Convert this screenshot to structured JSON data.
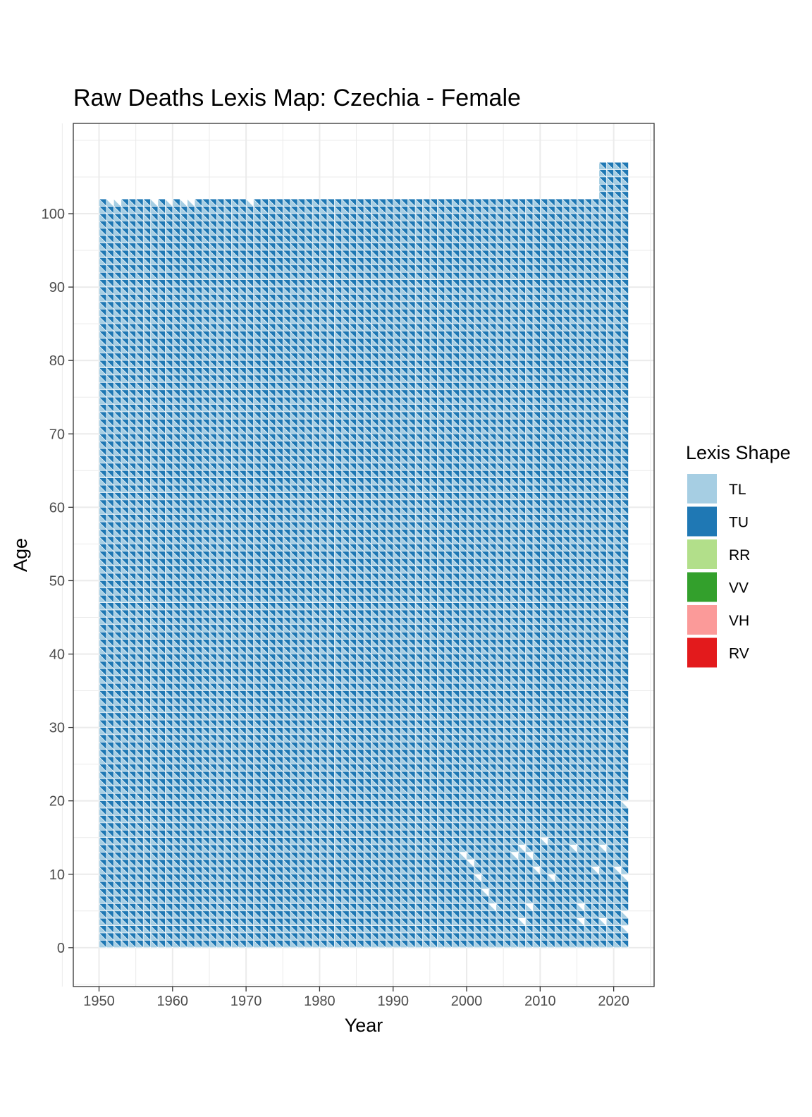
{
  "chart_data": {
    "type": "heatmap",
    "title": "Raw Deaths Lexis Map: Czechia - Female",
    "xlabel": "Year",
    "ylabel": "Age",
    "x_ticks": [
      "1950",
      "1960",
      "1970",
      "1980",
      "1990",
      "2000",
      "2010",
      "2020"
    ],
    "y_ticks": [
      "0",
      "10",
      "20",
      "30",
      "40",
      "50",
      "60",
      "70",
      "80",
      "90",
      "100"
    ],
    "xlim": [
      1946.5,
      2025.5
    ],
    "ylim": [
      -5.3,
      112.3
    ],
    "grid": true,
    "legend_position": "right",
    "year_range": [
      1950,
      2022
    ],
    "age_range": [
      0,
      102
    ],
    "extended_age_range": {
      "years": [
        2018,
        2022
      ],
      "max_age": 107
    },
    "legend": {
      "title": "Lexis Shape",
      "entries": [
        {
          "label": "TL",
          "color": "#a6cee3"
        },
        {
          "label": "TU",
          "color": "#1f78b4"
        },
        {
          "label": "RR",
          "color": "#b2df8a"
        },
        {
          "label": "VV",
          "color": "#33a02c"
        },
        {
          "label": "VH",
          "color": "#fb9a99"
        },
        {
          "label": "RV",
          "color": "#e31a1c"
        }
      ]
    },
    "cell_shapes": "Each year-age cell is split into a lower triangle (TL) and an upper triangle (TU)",
    "missing_triangles": [
      {
        "year": 1951,
        "age": 101
      },
      {
        "year": 1952,
        "age": 101
      },
      {
        "year": 1957,
        "age": 101
      },
      {
        "year": 1959,
        "age": 101
      },
      {
        "year": 1961,
        "age": 101
      },
      {
        "year": 1962,
        "age": 101
      },
      {
        "year": 1970,
        "age": 101
      },
      {
        "year": 1999,
        "age": 12
      },
      {
        "year": 2000,
        "age": 11
      },
      {
        "year": 2001,
        "age": 9
      },
      {
        "year": 2002,
        "age": 7
      },
      {
        "year": 2003,
        "age": 5
      },
      {
        "year": 2006,
        "age": 12
      },
      {
        "year": 2007,
        "age": 13
      },
      {
        "year": 2008,
        "age": 12
      },
      {
        "year": 2009,
        "age": 10
      },
      {
        "year": 2010,
        "age": 14
      },
      {
        "year": 2011,
        "age": 9
      },
      {
        "year": 2008,
        "age": 5
      },
      {
        "year": 2007,
        "age": 3
      },
      {
        "year": 2014,
        "age": 13
      },
      {
        "year": 2015,
        "age": 5
      },
      {
        "year": 2015,
        "age": 3
      },
      {
        "year": 2017,
        "age": 10
      },
      {
        "year": 2018,
        "age": 13
      },
      {
        "year": 2018,
        "age": 3
      },
      {
        "year": 2020,
        "age": 10
      },
      {
        "year": 2021,
        "age": 9
      },
      {
        "year": 2021,
        "age": 4
      },
      {
        "year": 2021,
        "age": 2
      },
      {
        "year": 2021,
        "age": 19
      }
    ]
  }
}
